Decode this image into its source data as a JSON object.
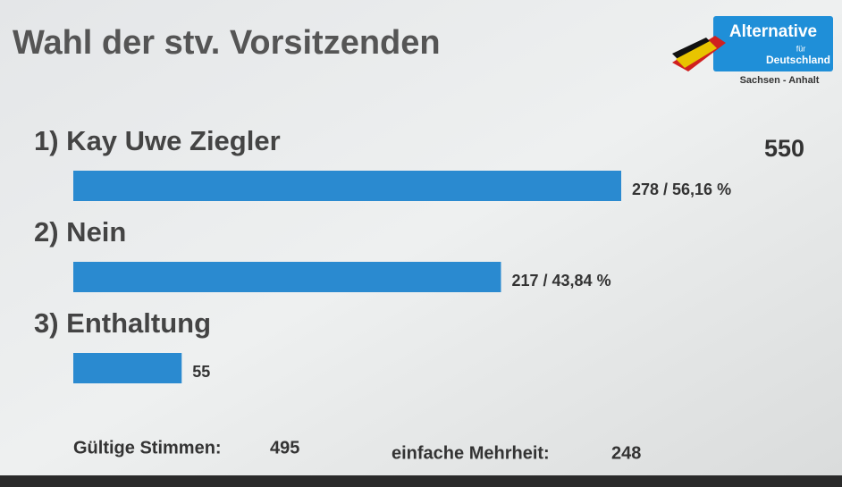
{
  "chart_data": {
    "type": "bar",
    "orientation": "horizontal",
    "title": "Wahl der stv. Vorsitzenden",
    "total": 550,
    "categories": [
      "1) Kay Uwe Ziegler",
      "2) Nein",
      "3) Enthaltung"
    ],
    "values": [
      278,
      217,
      55
    ],
    "value_labels": [
      "278 / 56,16 %",
      "217 / 43,84 %",
      "55"
    ],
    "color": "#2a8ad0"
  },
  "logo": {
    "name": "Alternative",
    "connector": "für",
    "country": "Deutschland",
    "region": "Sachsen - Anhalt"
  },
  "footer": {
    "valid_label": "Gültige Stimmen:",
    "valid": 495,
    "majority_label": "einfache Mehrheit:",
    "majority": 248
  }
}
